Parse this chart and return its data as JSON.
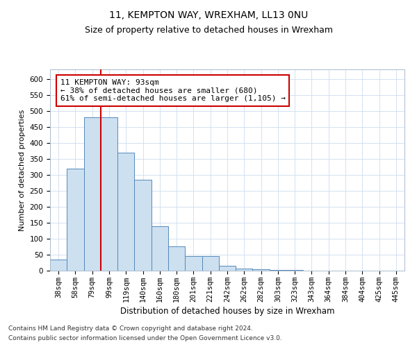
{
  "title1": "11, KEMPTON WAY, WREXHAM, LL13 0NU",
  "title2": "Size of property relative to detached houses in Wrexham",
  "xlabel": "Distribution of detached houses by size in Wrexham",
  "ylabel": "Number of detached properties",
  "categories": [
    "38sqm",
    "58sqm",
    "79sqm",
    "99sqm",
    "119sqm",
    "140sqm",
    "160sqm",
    "180sqm",
    "201sqm",
    "221sqm",
    "242sqm",
    "262sqm",
    "282sqm",
    "303sqm",
    "323sqm",
    "343sqm",
    "364sqm",
    "384sqm",
    "404sqm",
    "425sqm",
    "445sqm"
  ],
  "values": [
    35,
    320,
    480,
    480,
    370,
    285,
    140,
    75,
    45,
    45,
    15,
    7,
    5,
    3,
    2,
    1,
    0,
    0,
    0,
    0,
    0
  ],
  "bar_color": "#cce0f0",
  "bar_edge_color": "#5588bb",
  "vline_color": "#cc0000",
  "vline_pos": 2.5,
  "annotation_text": "11 KEMPTON WAY: 93sqm\n← 38% of detached houses are smaller (680)\n61% of semi-detached houses are larger (1,105) →",
  "annotation_box_color": "#ffffff",
  "annotation_box_edge": "#cc0000",
  "ylim": [
    0,
    630
  ],
  "yticks": [
    0,
    50,
    100,
    150,
    200,
    250,
    300,
    350,
    400,
    450,
    500,
    550,
    600
  ],
  "footer1": "Contains HM Land Registry data © Crown copyright and database right 2024.",
  "footer2": "Contains public sector information licensed under the Open Government Licence v3.0.",
  "bg_color": "#ffffff",
  "grid_color": "#ccddee",
  "title1_fontsize": 10,
  "title2_fontsize": 9,
  "xlabel_fontsize": 8.5,
  "ylabel_fontsize": 8,
  "tick_fontsize": 7.5,
  "annotation_fontsize": 8,
  "footer_fontsize": 6.5
}
